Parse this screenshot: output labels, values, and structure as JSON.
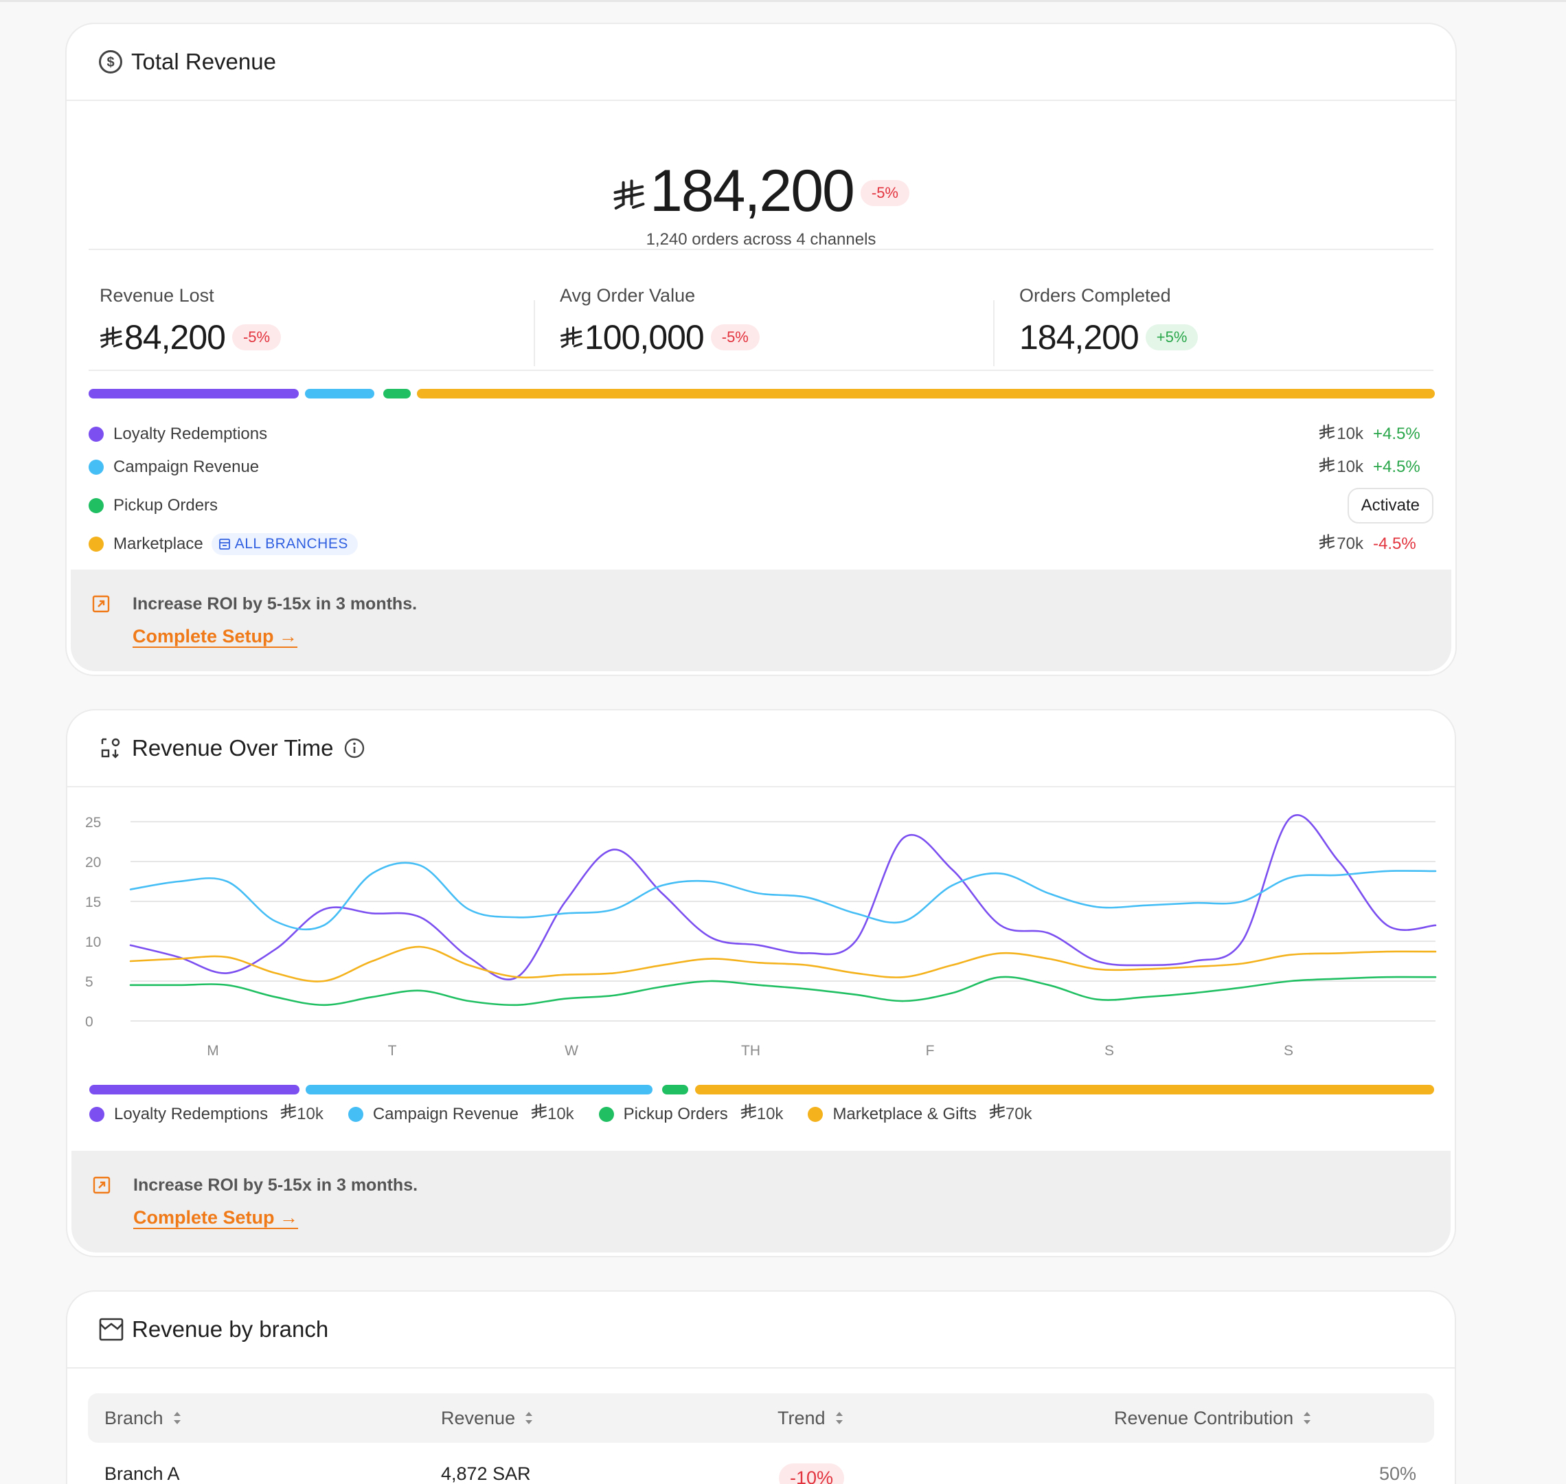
{
  "currency_symbol_name": "saudi-riyal-icon",
  "total_revenue": {
    "title": "Total Revenue",
    "value": "184,200",
    "change": "-5%",
    "subtitle": "1,240 orders across 4 channels",
    "metrics": [
      {
        "label": "Revenue Lost",
        "value": "84,200",
        "change": "-5%",
        "change_type": "negative",
        "currency": true
      },
      {
        "label": "Avg Order Value",
        "value": "100,000",
        "change": "-5%",
        "change_type": "negative",
        "currency": true
      },
      {
        "label": "Orders Completed",
        "value": "184,200",
        "change": "+5%",
        "change_type": "positive",
        "currency": false
      }
    ],
    "channels": [
      {
        "name": "Loyalty Redemptions",
        "color": "#7b4ff0",
        "amount": "10k",
        "change": "+4.5%",
        "change_type": "positive"
      },
      {
        "name": "Campaign Revenue",
        "color": "#45bdf5",
        "amount": "10k",
        "change": "+4.5%",
        "change_type": "positive"
      },
      {
        "name": "Pickup Orders",
        "color": "#1fbf62",
        "action": "Activate"
      },
      {
        "name": "Marketplace",
        "color": "#f4b21c",
        "tag": "ALL BRANCHES",
        "amount": "70k",
        "change": "-4.5%",
        "change_type": "negative"
      }
    ],
    "promo": {
      "text": "Increase ROI by 5-15x in 3 months.",
      "link": "Complete Setup →"
    }
  },
  "revenue_over_time": {
    "title": "Revenue Over Time",
    "legend": [
      {
        "name": "Loyalty Redemptions",
        "value": "10k",
        "color": "#7b4ff0"
      },
      {
        "name": "Campaign Revenue",
        "value": "10k",
        "color": "#45bdf5"
      },
      {
        "name": "Pickup Orders",
        "value": "10k",
        "color": "#1fbf62"
      },
      {
        "name": "Marketplace & Gifts",
        "value": "70k",
        "color": "#f4b21c"
      }
    ],
    "promo": {
      "text": "Increase ROI by 5-15x in 3 months.",
      "link": "Complete Setup →"
    }
  },
  "chart_data": {
    "type": "line",
    "categories": [
      "M",
      "T",
      "W",
      "TH",
      "F",
      "S",
      "S"
    ],
    "ylim": [
      0,
      25
    ],
    "yticks": [
      0,
      5,
      10,
      15,
      20,
      25
    ],
    "grid": true,
    "x": [
      0,
      0.5,
      1,
      1.5,
      2,
      2.5,
      3,
      3.5,
      4,
      4.5,
      5,
      5.5,
      6,
      6.5,
      7,
      7.5,
      8,
      8.5,
      9,
      9.5,
      10,
      10.5,
      11,
      11.5,
      12,
      12.5,
      13,
      13.5
    ],
    "series": [
      {
        "name": "Loyalty Redemptions",
        "color": "#7b4ff0",
        "values": [
          9.5,
          8,
          6,
          9,
          14,
          13.5,
          13,
          8,
          5.5,
          15,
          21.5,
          16,
          10.5,
          9.5,
          8.5,
          10,
          23,
          19,
          12,
          11,
          7.5,
          7,
          7.5,
          10,
          25.5,
          20,
          12,
          12
        ]
      },
      {
        "name": "Campaign Revenue",
        "color": "#45bdf5",
        "values": [
          16.5,
          17.5,
          17.5,
          12.5,
          12,
          18.5,
          19.5,
          14,
          13,
          13.5,
          14,
          17,
          17.5,
          16,
          15.5,
          13.5,
          12.5,
          17,
          18.5,
          16,
          14.3,
          14.5,
          14.8,
          15,
          18,
          18.3,
          18.8,
          18.8
        ]
      },
      {
        "name": "Pickup Orders",
        "color": "#1fbf62",
        "values": [
          4.5,
          4.5,
          4.5,
          3,
          2,
          3,
          3.8,
          2.5,
          2,
          2.8,
          3.2,
          4.3,
          5,
          4.5,
          4,
          3.3,
          2.5,
          3.5,
          5.5,
          4.5,
          2.7,
          3,
          3.5,
          4.2,
          5,
          5.3,
          5.5,
          5.5
        ]
      },
      {
        "name": "Marketplace & Gifts",
        "color": "#f4b21c",
        "values": [
          7.5,
          7.8,
          8,
          6,
          5,
          7.5,
          9.3,
          7,
          5.5,
          5.8,
          6,
          7,
          7.8,
          7.3,
          7,
          6,
          5.5,
          7,
          8.5,
          7.8,
          6.5,
          6.5,
          6.8,
          7.2,
          8.3,
          8.5,
          8.7,
          8.7
        ]
      }
    ]
  },
  "revenue_by_branch": {
    "title": "Revenue by branch",
    "columns": [
      "Branch",
      "Revenue",
      "Trend",
      "Revenue Contribution"
    ],
    "partial_row": {
      "branch": "Branch A",
      "revenue": "4,872 SAR",
      "trend": "-10%",
      "contribution": "50%"
    }
  }
}
